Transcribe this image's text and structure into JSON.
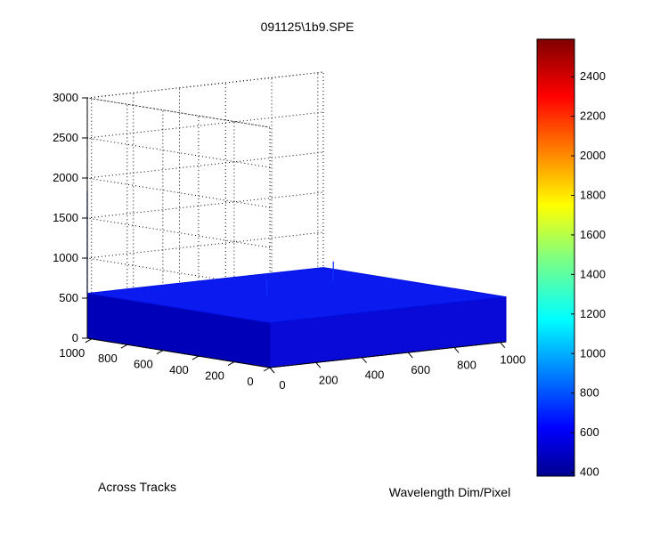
{
  "chart_data": {
    "type": "surface",
    "title": "091125\\1b9.SPE",
    "xlabel": "Wavelength Dim/Pixel",
    "ylabel": "Across Tracks",
    "zlabel": "",
    "xlim": [
      0,
      1024
    ],
    "ylim": [
      0,
      1024
    ],
    "zlim": [
      0,
      3000
    ],
    "x_ticks": [
      "0",
      "200",
      "400",
      "600",
      "800",
      "1000"
    ],
    "y_ticks": [
      "0",
      "200",
      "400",
      "600",
      "800",
      "1000"
    ],
    "z_ticks": [
      "0",
      "500",
      "1000",
      "1500",
      "2000",
      "2500",
      "3000"
    ],
    "grid": true,
    "surface": {
      "baseline_level": 560,
      "spikes": [
        {
          "x": 0,
          "y": 1024,
          "z": 1840
        },
        {
          "x": 420,
          "y": 560,
          "z": 760
        },
        {
          "x": 840,
          "y": 730,
          "z": 800
        }
      ]
    },
    "colorbar": {
      "colormap": "jet",
      "range": [
        380,
        2590
      ],
      "ticks": [
        "400",
        "600",
        "800",
        "1000",
        "1200",
        "1400",
        "1600",
        "1800",
        "2000",
        "2200",
        "2400"
      ]
    }
  }
}
